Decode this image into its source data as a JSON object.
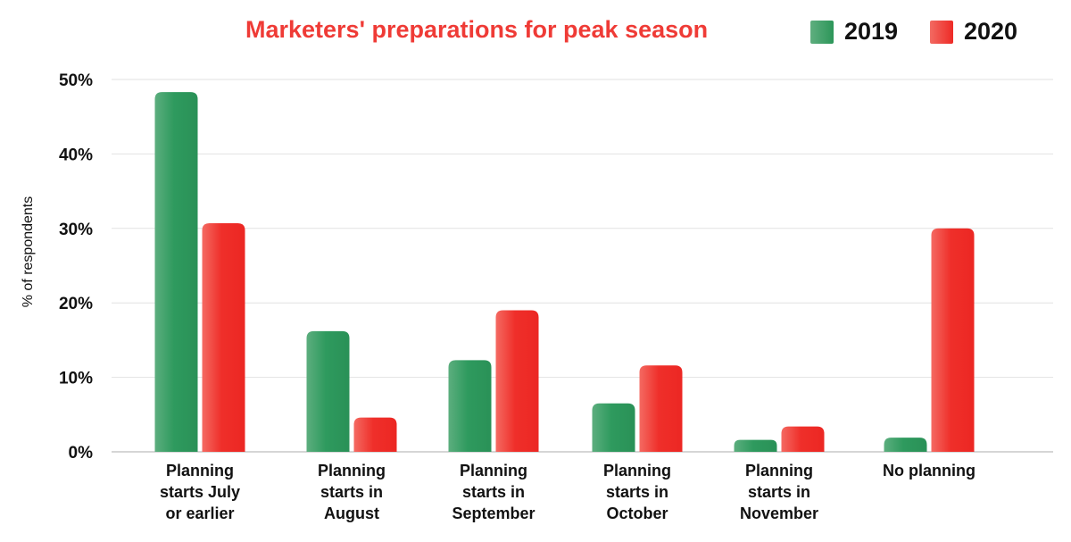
{
  "chart_data": {
    "type": "bar",
    "title": "Marketers' preparations for peak season",
    "xlabel": "",
    "ylabel": "% of respondents",
    "ylim": [
      0,
      50
    ],
    "yticks": [
      0,
      10,
      20,
      30,
      40,
      50
    ],
    "ytick_labels": [
      "0%",
      "10%",
      "20%",
      "30%",
      "40%",
      "50%"
    ],
    "grid": "horizontal",
    "legend_position": "top-right",
    "categories": [
      [
        "Planning",
        "starts July",
        "or earlier"
      ],
      [
        "Planning",
        "starts in",
        "August"
      ],
      [
        "Planning",
        "starts in",
        "September"
      ],
      [
        "Planning",
        "starts in",
        "October"
      ],
      [
        "Planning",
        "starts in",
        "November"
      ],
      [
        "No planning"
      ]
    ],
    "series": [
      {
        "name": "2019",
        "color": "#2e9a5e",
        "values": [
          48.3,
          16.2,
          12.3,
          6.5,
          1.6,
          1.9
        ]
      },
      {
        "name": "2020",
        "color": "#ef2f2a",
        "values": [
          30.7,
          4.6,
          19.0,
          11.6,
          3.4,
          30.0
        ]
      }
    ]
  }
}
